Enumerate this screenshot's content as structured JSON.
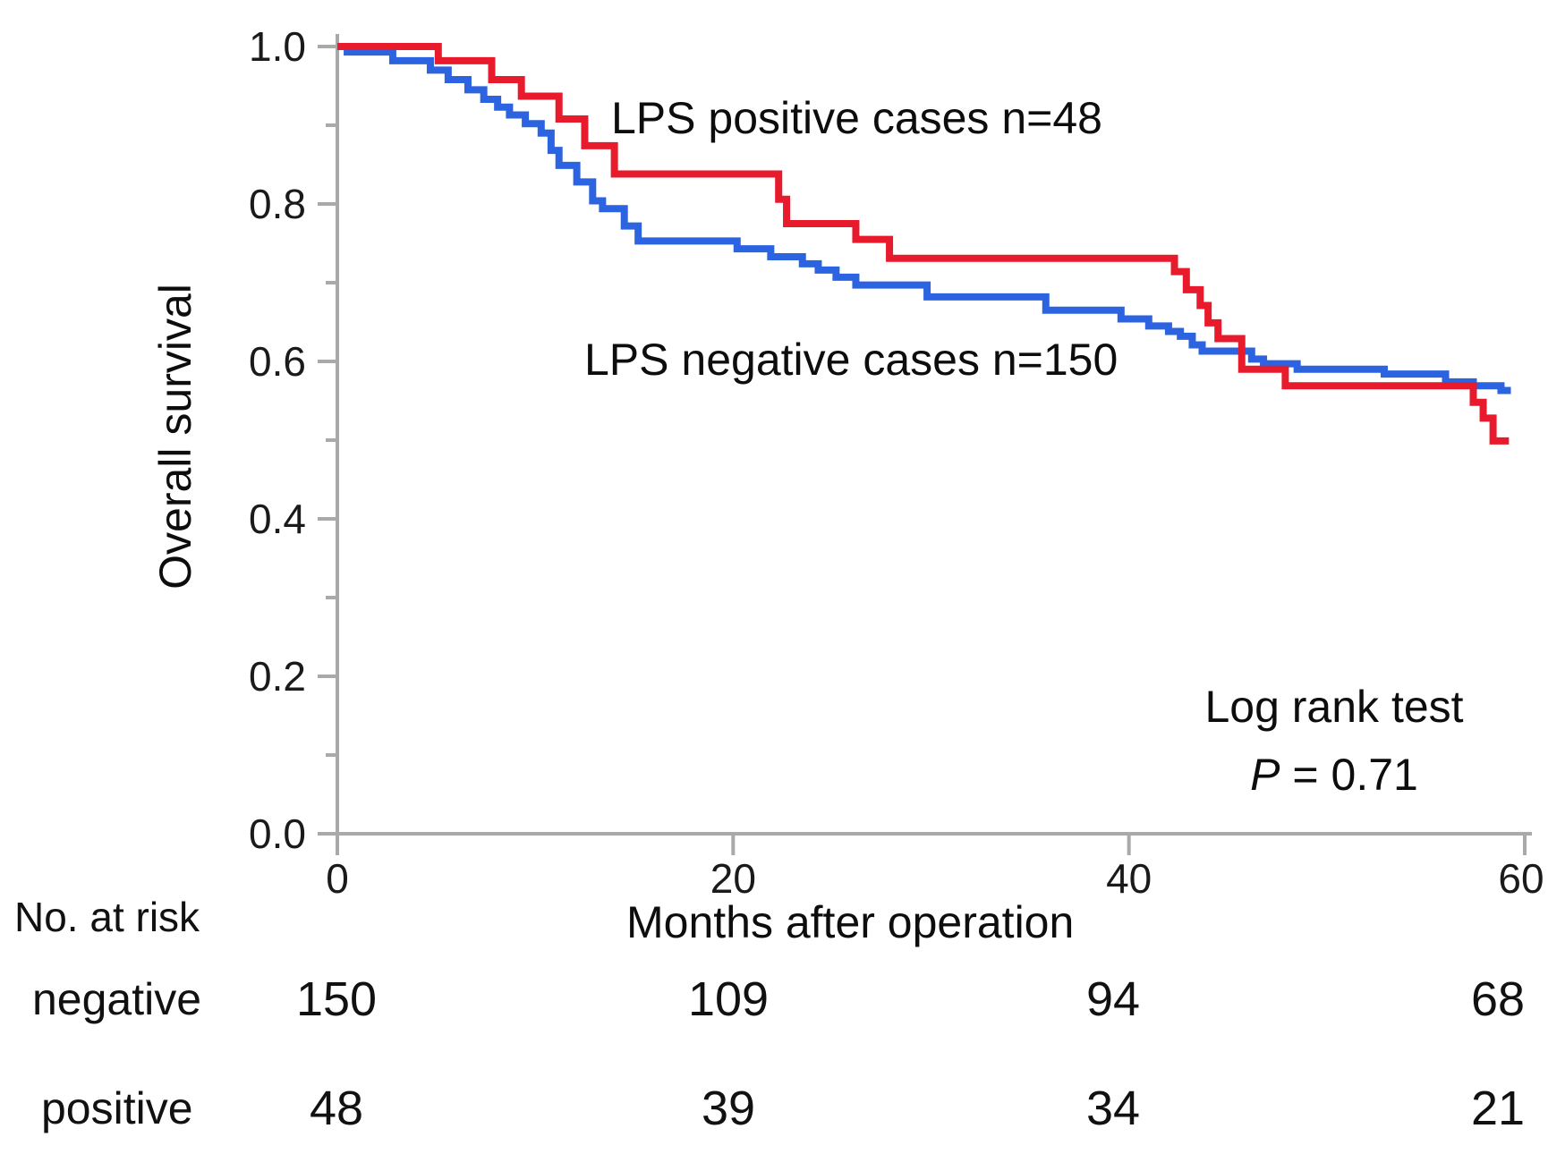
{
  "figure": {
    "ylabel": "Overall survival",
    "xlabel": "Months after operation",
    "curve_labels": {
      "positive": "LPS positive cases n=48",
      "negative": "LPS negative cases n=150"
    },
    "stats": {
      "line1": "Log rank test",
      "p_symbol": "P",
      "p_rest": " = 0.71"
    },
    "colors": {
      "positive": "#e71b2c",
      "negative": "#2c63e0",
      "axis": "#a9a9a9",
      "text": "#111111"
    }
  },
  "at_risk": {
    "heading": "No. at risk",
    "rows": [
      {
        "label": "negative",
        "values": [
          "150",
          "109",
          "94",
          "68"
        ]
      },
      {
        "label": "positive",
        "values": [
          "48",
          "39",
          "34",
          "21"
        ]
      }
    ]
  },
  "chart_data": {
    "type": "line",
    "subtype": "kaplan-meier-step",
    "title": "",
    "xlabel": "Months after operation",
    "ylabel": "Overall survival",
    "xlim": [
      0,
      60
    ],
    "ylim": [
      0.0,
      1.0
    ],
    "xticks": [
      0,
      20,
      40,
      60
    ],
    "yticks": [
      0.0,
      0.2,
      0.4,
      0.6,
      0.8,
      1.0
    ],
    "yticks_minor": [
      0.1,
      0.3,
      0.5,
      0.7,
      0.9
    ],
    "grid": false,
    "legend_position": "inline-annotations",
    "annotations": [
      "LPS positive cases n=48",
      "LPS negative cases n=150",
      "Log rank test",
      "P = 0.71"
    ],
    "series": [
      {
        "name": "LPS negative cases n=150",
        "group": "LPS negative",
        "n": 150,
        "color": "#2c63e0",
        "points": [
          [
            0,
            1.0
          ],
          [
            0.5,
            0.993
          ],
          [
            2.8,
            0.982
          ],
          [
            4.7,
            0.97
          ],
          [
            5.6,
            0.958
          ],
          [
            6.6,
            0.945
          ],
          [
            7.4,
            0.933
          ],
          [
            8.1,
            0.923
          ],
          [
            8.7,
            0.913
          ],
          [
            9.5,
            0.902
          ],
          [
            10.3,
            0.89
          ],
          [
            10.8,
            0.868
          ],
          [
            11.2,
            0.849
          ],
          [
            12.1,
            0.828
          ],
          [
            12.9,
            0.804
          ],
          [
            13.4,
            0.794
          ],
          [
            14.5,
            0.772
          ],
          [
            15.2,
            0.753
          ],
          [
            20.2,
            0.743
          ],
          [
            21.9,
            0.733
          ],
          [
            23.5,
            0.724
          ],
          [
            24.3,
            0.716
          ],
          [
            25.2,
            0.707
          ],
          [
            26.2,
            0.697
          ],
          [
            29.8,
            0.682
          ],
          [
            35.8,
            0.665
          ],
          [
            39.6,
            0.654
          ],
          [
            41.0,
            0.645
          ],
          [
            42.0,
            0.638
          ],
          [
            42.6,
            0.632
          ],
          [
            43.2,
            0.621
          ],
          [
            43.7,
            0.613
          ],
          [
            46.2,
            0.603
          ],
          [
            46.8,
            0.597
          ],
          [
            48.5,
            0.59
          ],
          [
            52.9,
            0.584
          ],
          [
            56.0,
            0.574
          ],
          [
            57.4,
            0.569
          ],
          [
            58.8,
            0.563
          ],
          [
            59.3,
            0.563
          ]
        ]
      },
      {
        "name": "LPS positive cases n=48",
        "group": "LPS positive",
        "n": 48,
        "color": "#e71b2c",
        "points": [
          [
            0,
            1.0
          ],
          [
            5.1,
            0.982
          ],
          [
            7.8,
            0.958
          ],
          [
            9.3,
            0.937
          ],
          [
            11.2,
            0.908
          ],
          [
            12.5,
            0.874
          ],
          [
            14.0,
            0.838
          ],
          [
            22.3,
            0.806
          ],
          [
            22.7,
            0.775
          ],
          [
            26.2,
            0.755
          ],
          [
            27.9,
            0.731
          ],
          [
            42.3,
            0.714
          ],
          [
            42.9,
            0.691
          ],
          [
            43.6,
            0.671
          ],
          [
            44.0,
            0.649
          ],
          [
            44.5,
            0.629
          ],
          [
            45.7,
            0.59
          ],
          [
            47.9,
            0.569
          ],
          [
            57.4,
            0.548
          ],
          [
            57.9,
            0.528
          ],
          [
            58.4,
            0.499
          ],
          [
            59.2,
            0.499
          ]
        ]
      }
    ],
    "at_risk_table": {
      "heading": "No. at risk",
      "months": [
        0,
        20,
        40,
        60
      ],
      "negative": [
        150,
        109,
        94,
        68
      ],
      "positive": [
        48,
        39,
        34,
        21
      ]
    }
  }
}
